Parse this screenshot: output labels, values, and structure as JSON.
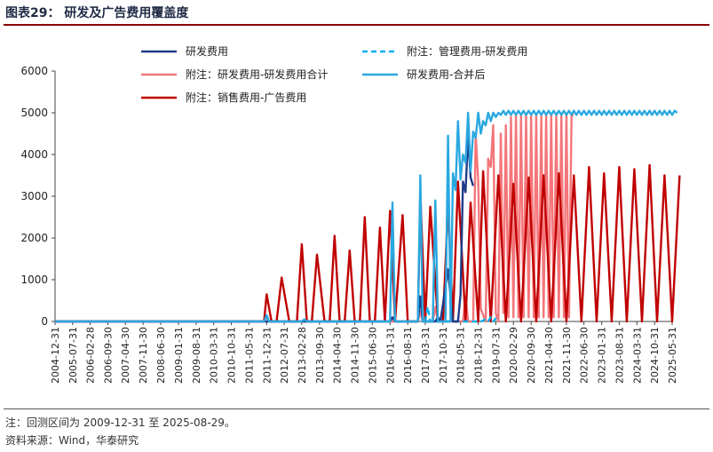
{
  "title": "图表29：  研发及广告费用覆盖度",
  "note": "注：回测区间为 2009-12-31 至 2025-08-29。",
  "source": "资料来源：Wind，华泰研究",
  "chart_data": {
    "type": "line",
    "title": "",
    "xlabel": "",
    "ylabel": "",
    "ylim": [
      0,
      6000
    ],
    "yticks": [
      0,
      1000,
      2000,
      3000,
      4000,
      5000,
      6000
    ],
    "x_tick_labels": [
      "2004-12-31",
      "2005-07-31",
      "2006-02-28",
      "2006-09-30",
      "2007-04-30",
      "2007-11-30",
      "2008-06-30",
      "2009-01-31",
      "2009-08-31",
      "2010-03-31",
      "2010-10-31",
      "2011-05-31",
      "2011-12-31",
      "2012-07-31",
      "2013-02-28",
      "2013-09-30",
      "2014-04-30",
      "2014-11-30",
      "2015-06-30",
      "2016-01-31",
      "2016-08-31",
      "2017-03-31",
      "2017-10-31",
      "2018-05-31",
      "2018-12-31",
      "2019-07-31",
      "2020-02-29",
      "2020-09-30",
      "2021-04-30",
      "2021-11-30",
      "2022-06-30",
      "2023-01-31",
      "2023-08-31",
      "2024-03-31",
      "2024-10-31",
      "2025-05-31"
    ],
    "grid": false,
    "legend_position": "top",
    "series": [
      {
        "name": "研发费用",
        "color": "#1f3c88",
        "style": "solid",
        "points": [
          [
            "2004-12-31",
            0
          ],
          [
            "2016-01-31",
            0
          ],
          [
            "2016-02-29",
            100
          ],
          [
            "2016-03-31",
            0
          ],
          [
            "2016-12-31",
            0
          ],
          [
            "2017-01-31",
            600
          ],
          [
            "2017-02-28",
            0
          ],
          [
            "2017-07-31",
            0
          ],
          [
            "2017-08-31",
            100
          ],
          [
            "2017-09-30",
            0
          ],
          [
            "2017-12-31",
            1250
          ],
          [
            "2018-02-28",
            0
          ],
          [
            "2018-04-30",
            0
          ],
          [
            "2018-05-31",
            650
          ],
          [
            "2018-06-30",
            3350
          ],
          [
            "2018-07-31",
            3100
          ],
          [
            "2018-08-31",
            4450
          ],
          [
            "2018-09-30",
            3450
          ],
          [
            "2018-10-31",
            3250
          ]
        ]
      },
      {
        "name": "附注：管理费用-研发费用",
        "color": "#00b0f0",
        "style": "dashed",
        "points": [
          [
            "2017-03-31",
            0
          ],
          [
            "2017-04-30",
            350
          ],
          [
            "2017-05-31",
            0
          ],
          [
            "2019-01-31",
            0
          ],
          [
            "2019-03-31",
            50
          ],
          [
            "2019-04-30",
            0
          ],
          [
            "2019-05-31",
            100
          ],
          [
            "2019-06-30",
            0
          ],
          [
            "2019-08-31",
            150
          ]
        ]
      },
      {
        "name": "附注：研发费用-研发费用合计",
        "color": "#f4767a",
        "style": "solid",
        "points": [
          [
            "2004-12-31",
            0
          ],
          [
            "2011-11-30",
            0
          ],
          [
            "2011-12-31",
            100
          ],
          [
            "2012-01-31",
            0
          ],
          [
            "2016-12-31",
            0
          ],
          [
            "2017-01-31",
            250
          ],
          [
            "2017-02-28",
            0
          ],
          [
            "2017-06-30",
            0
          ],
          [
            "2017-07-31",
            350
          ],
          [
            "2017-08-31",
            0
          ],
          [
            "2018-06-30",
            0
          ],
          [
            "2018-07-31",
            600
          ],
          [
            "2018-08-31",
            0
          ],
          [
            "2018-10-31",
            0
          ],
          [
            "2018-11-30",
            4500
          ],
          [
            "2018-12-31",
            3350
          ],
          [
            "2019-01-31",
            300
          ],
          [
            "2019-03-31",
            0
          ],
          [
            "2019-04-30",
            3900
          ],
          [
            "2019-05-31",
            3700
          ],
          [
            "2019-06-30",
            4700
          ],
          [
            "2019-07-31",
            200
          ],
          [
            "2019-08-31",
            0
          ],
          [
            "2019-09-30",
            4500
          ],
          [
            "2019-10-31",
            200
          ],
          [
            "2019-11-30",
            4700
          ],
          [
            "2019-12-31",
            100
          ],
          [
            "2020-01-31",
            4900
          ],
          [
            "2020-02-29",
            100
          ],
          [
            "2020-03-31",
            4950
          ],
          [
            "2020-04-30",
            100
          ],
          [
            "2020-05-31",
            4950
          ],
          [
            "2020-06-30",
            100
          ],
          [
            "2020-07-31",
            4950
          ],
          [
            "2020-08-31",
            100
          ],
          [
            "2020-09-30",
            4950
          ],
          [
            "2020-10-31",
            100
          ],
          [
            "2020-11-30",
            4950
          ],
          [
            "2020-12-31",
            100
          ],
          [
            "2021-01-31",
            4950
          ],
          [
            "2021-02-28",
            100
          ],
          [
            "2021-03-31",
            4950
          ],
          [
            "2021-04-30",
            100
          ],
          [
            "2021-05-31",
            4950
          ],
          [
            "2021-06-30",
            100
          ],
          [
            "2021-07-31",
            4950
          ],
          [
            "2021-08-31",
            100
          ],
          [
            "2021-09-30",
            4950
          ],
          [
            "2021-10-31",
            100
          ],
          [
            "2021-11-30",
            4950
          ],
          [
            "2021-12-31",
            100
          ],
          [
            "2022-01-31",
            4950
          ],
          [
            "2022-02-28",
            4950
          ]
        ]
      },
      {
        "name": "研发费用-合并后",
        "color": "#2aa8e0",
        "style": "solid",
        "points": [
          [
            "2004-12-31",
            0
          ],
          [
            "2011-11-30",
            0
          ],
          [
            "2011-12-31",
            150
          ],
          [
            "2012-01-31",
            0
          ],
          [
            "2013-02-28",
            0
          ],
          [
            "2013-03-31",
            50
          ],
          [
            "2013-04-30",
            0
          ],
          [
            "2016-01-31",
            0
          ],
          [
            "2016-02-29",
            2850
          ],
          [
            "2016-03-31",
            0
          ],
          [
            "2016-12-31",
            0
          ],
          [
            "2017-01-31",
            3500
          ],
          [
            "2017-02-28",
            0
          ],
          [
            "2017-06-30",
            0
          ],
          [
            "2017-07-31",
            2900
          ],
          [
            "2017-08-31",
            0
          ],
          [
            "2017-11-30",
            0
          ],
          [
            "2017-12-31",
            4450
          ],
          [
            "2018-01-31",
            0
          ],
          [
            "2018-02-28",
            3550
          ],
          [
            "2018-03-31",
            3150
          ],
          [
            "2018-04-30",
            4800
          ],
          [
            "2018-05-31",
            3400
          ],
          [
            "2018-06-30",
            4000
          ],
          [
            "2018-07-31",
            3800
          ],
          [
            "2018-08-31",
            5000
          ],
          [
            "2018-09-30",
            3600
          ],
          [
            "2018-10-31",
            4550
          ],
          [
            "2018-11-30",
            4400
          ],
          [
            "2018-12-31",
            5000
          ],
          [
            "2019-01-31",
            4500
          ],
          [
            "2019-02-28",
            4800
          ],
          [
            "2019-03-31",
            4700
          ],
          [
            "2019-04-30",
            5000
          ],
          [
            "2019-05-31",
            4800
          ],
          [
            "2019-06-30",
            5000
          ],
          [
            "2019-07-31",
            4900
          ],
          [
            "2019-08-31",
            5000
          ],
          [
            "2019-09-30",
            4950
          ],
          [
            "2019-10-31",
            5050
          ],
          [
            "2019-11-30",
            4950
          ],
          [
            "2019-12-31",
            5050
          ],
          [
            "2020-01-31",
            4950
          ],
          [
            "2020-02-29",
            5050
          ],
          [
            "2020-03-31",
            4950
          ],
          [
            "2020-04-30",
            5050
          ],
          [
            "2020-05-31",
            4950
          ],
          [
            "2020-06-30",
            5050
          ],
          [
            "2020-07-31",
            4950
          ],
          [
            "2020-08-31",
            5050
          ],
          [
            "2020-09-30",
            4950
          ],
          [
            "2020-10-31",
            5050
          ],
          [
            "2020-11-30",
            4950
          ],
          [
            "2020-12-31",
            5050
          ],
          [
            "2021-01-31",
            4950
          ],
          [
            "2021-02-28",
            5050
          ],
          [
            "2021-03-31",
            4950
          ],
          [
            "2021-04-30",
            5050
          ],
          [
            "2021-05-31",
            4950
          ],
          [
            "2021-06-30",
            5050
          ],
          [
            "2021-07-31",
            4950
          ],
          [
            "2021-08-31",
            5050
          ],
          [
            "2021-09-30",
            4950
          ],
          [
            "2021-10-31",
            5050
          ],
          [
            "2021-11-30",
            4950
          ],
          [
            "2021-12-31",
            5050
          ],
          [
            "2022-01-31",
            4950
          ],
          [
            "2022-02-28",
            5050
          ],
          [
            "2022-03-31",
            4950
          ],
          [
            "2022-04-30",
            5050
          ],
          [
            "2022-05-31",
            4950
          ],
          [
            "2022-06-30",
            5050
          ],
          [
            "2022-07-31",
            4950
          ],
          [
            "2022-08-31",
            5050
          ],
          [
            "2022-09-30",
            4950
          ],
          [
            "2022-10-31",
            5050
          ],
          [
            "2022-11-30",
            4950
          ],
          [
            "2022-12-31",
            5050
          ],
          [
            "2023-01-31",
            4950
          ],
          [
            "2023-02-28",
            5050
          ],
          [
            "2023-03-31",
            4950
          ],
          [
            "2023-04-30",
            5050
          ],
          [
            "2023-05-31",
            4950
          ],
          [
            "2023-06-30",
            5050
          ],
          [
            "2023-07-31",
            4950
          ],
          [
            "2023-08-31",
            5050
          ],
          [
            "2023-09-30",
            4950
          ],
          [
            "2023-10-31",
            5050
          ],
          [
            "2023-11-30",
            4950
          ],
          [
            "2023-12-31",
            5050
          ],
          [
            "2024-01-31",
            4950
          ],
          [
            "2024-02-29",
            5050
          ],
          [
            "2024-03-31",
            4950
          ],
          [
            "2024-04-30",
            5050
          ],
          [
            "2024-05-31",
            4950
          ],
          [
            "2024-06-30",
            5050
          ],
          [
            "2024-07-31",
            4950
          ],
          [
            "2024-08-31",
            5050
          ],
          [
            "2024-09-30",
            4950
          ],
          [
            "2024-10-31",
            5050
          ],
          [
            "2024-11-30",
            4950
          ],
          [
            "2024-12-31",
            5050
          ],
          [
            "2025-01-31",
            4950
          ],
          [
            "2025-02-28",
            5050
          ],
          [
            "2025-03-31",
            4950
          ],
          [
            "2025-04-30",
            5050
          ],
          [
            "2025-05-31",
            4950
          ],
          [
            "2025-06-30",
            5050
          ],
          [
            "2025-07-31",
            5000
          ]
        ]
      },
      {
        "name": "附注：销售费用-广告费用",
        "color": "#c00000",
        "style": "solid",
        "points": [
          [
            "2004-12-31",
            0
          ],
          [
            "2011-11-30",
            0
          ],
          [
            "2011-12-31",
            650
          ],
          [
            "2012-02-28",
            0
          ],
          [
            "2012-04-30",
            0
          ],
          [
            "2012-06-30",
            1050
          ],
          [
            "2012-09-30",
            0
          ],
          [
            "2012-12-31",
            0
          ],
          [
            "2013-02-28",
            1850
          ],
          [
            "2013-04-30",
            0
          ],
          [
            "2013-06-30",
            0
          ],
          [
            "2013-08-31",
            1600
          ],
          [
            "2013-11-30",
            0
          ],
          [
            "2014-01-31",
            0
          ],
          [
            "2014-03-31",
            2050
          ],
          [
            "2014-05-31",
            0
          ],
          [
            "2014-07-31",
            0
          ],
          [
            "2014-09-30",
            1700
          ],
          [
            "2014-11-30",
            0
          ],
          [
            "2015-01-31",
            0
          ],
          [
            "2015-03-31",
            2500
          ],
          [
            "2015-05-31",
            0
          ],
          [
            "2015-07-31",
            0
          ],
          [
            "2015-09-30",
            2250
          ],
          [
            "2015-11-30",
            0
          ],
          [
            "2016-01-31",
            2650
          ],
          [
            "2016-03-31",
            0
          ],
          [
            "2016-06-30",
            2550
          ],
          [
            "2016-08-31",
            0
          ],
          [
            "2016-12-31",
            0
          ],
          [
            "2017-01-31",
            3050
          ],
          [
            "2017-03-31",
            0
          ],
          [
            "2017-05-31",
            2750
          ],
          [
            "2017-08-31",
            0
          ],
          [
            "2017-10-31",
            0
          ],
          [
            "2017-12-31",
            2800
          ],
          [
            "2018-02-28",
            0
          ],
          [
            "2018-04-30",
            3350
          ],
          [
            "2018-07-31",
            0
          ],
          [
            "2018-09-30",
            2850
          ],
          [
            "2018-12-31",
            0
          ],
          [
            "2019-02-28",
            3600
          ],
          [
            "2019-05-31",
            0
          ],
          [
            "2019-08-31",
            3500
          ],
          [
            "2019-11-30",
            0
          ],
          [
            "2020-02-29",
            3300
          ],
          [
            "2020-05-31",
            0
          ],
          [
            "2020-08-31",
            3450
          ],
          [
            "2020-11-30",
            0
          ],
          [
            "2021-02-28",
            3500
          ],
          [
            "2021-05-31",
            0
          ],
          [
            "2021-08-31",
            3550
          ],
          [
            "2021-11-30",
            0
          ],
          [
            "2022-02-28",
            3500
          ],
          [
            "2022-05-31",
            0
          ],
          [
            "2022-08-31",
            3700
          ],
          [
            "2022-11-30",
            0
          ],
          [
            "2023-02-28",
            3550
          ],
          [
            "2023-05-31",
            0
          ],
          [
            "2023-08-31",
            3700
          ],
          [
            "2023-11-30",
            0
          ],
          [
            "2024-02-29",
            3650
          ],
          [
            "2024-05-31",
            0
          ],
          [
            "2024-08-31",
            3750
          ],
          [
            "2024-11-30",
            0
          ],
          [
            "2025-02-28",
            3500
          ],
          [
            "2025-05-31",
            0
          ],
          [
            "2025-08-29",
            3500
          ]
        ]
      }
    ]
  }
}
